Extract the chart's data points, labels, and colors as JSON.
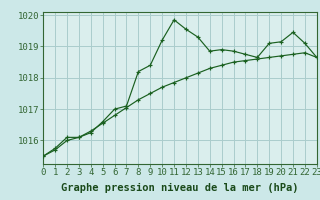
{
  "title": "Graphe pression niveau de la mer (hPa)",
  "bg_color": "#cce8e8",
  "plot_bg_color": "#daeeed",
  "grid_color": "#aacccc",
  "line_color": "#1a6020",
  "x_values": [
    0,
    1,
    2,
    3,
    4,
    5,
    6,
    7,
    8,
    9,
    10,
    11,
    12,
    13,
    14,
    15,
    16,
    17,
    18,
    19,
    20,
    21,
    22,
    23
  ],
  "series1": [
    1015.5,
    1015.75,
    1016.1,
    1016.1,
    1016.25,
    1016.6,
    1017.0,
    1017.1,
    1018.2,
    1018.4,
    1019.2,
    1019.85,
    1019.55,
    1019.3,
    1018.85,
    1018.9,
    1018.85,
    1018.75,
    1018.65,
    1019.1,
    1019.15,
    1019.45,
    1019.1,
    1018.65
  ],
  "series2": [
    1015.5,
    1015.7,
    1016.0,
    1016.1,
    1016.3,
    1016.55,
    1016.8,
    1017.05,
    1017.3,
    1017.5,
    1017.7,
    1017.85,
    1018.0,
    1018.15,
    1018.3,
    1018.4,
    1018.5,
    1018.55,
    1018.6,
    1018.65,
    1018.7,
    1018.75,
    1018.8,
    1018.65
  ],
  "xlim": [
    0,
    23
  ],
  "ylim": [
    1015.25,
    1020.1
  ],
  "yticks": [
    1016,
    1017,
    1018,
    1019,
    1020
  ],
  "xticks": [
    0,
    1,
    2,
    3,
    4,
    5,
    6,
    7,
    8,
    9,
    10,
    11,
    12,
    13,
    14,
    15,
    16,
    17,
    18,
    19,
    20,
    21,
    22,
    23
  ],
  "xlabel_fontsize": 7.5,
  "tick_fontsize": 6.5
}
